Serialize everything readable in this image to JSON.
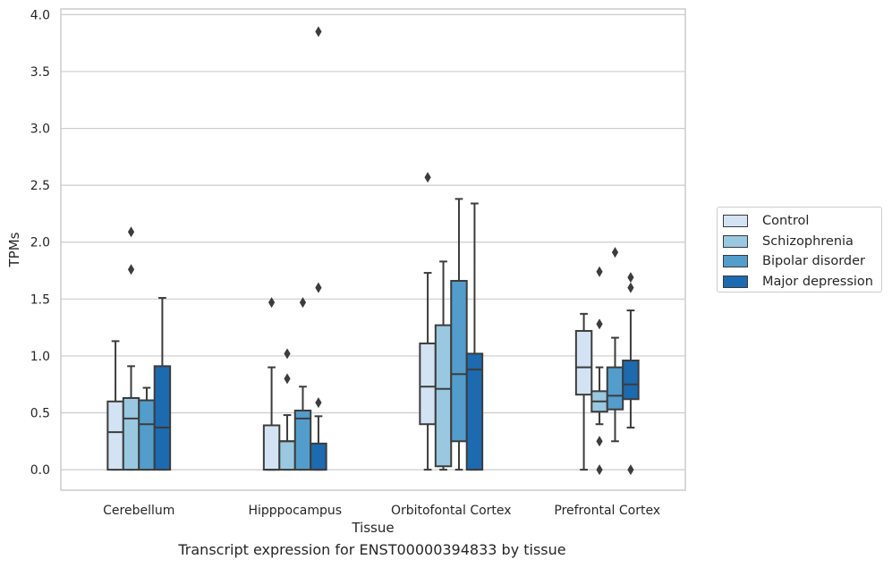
{
  "chart_data": {
    "type": "box",
    "xlabel": "Tissue",
    "ylabel": "TPMs",
    "caption": "Transcript expression for ENST00000394833 by tissue",
    "ylim": [
      -0.18,
      4.05
    ],
    "yticks": [
      "0.0",
      "0.5",
      "1.0",
      "1.5",
      "2.0",
      "2.5",
      "3.0",
      "3.5",
      "4.0"
    ],
    "grid": "horizontal",
    "legend_position": "right",
    "categories": [
      "Cerebellum",
      "Hipppocampus",
      "Orbitofontal Cortex",
      "Prefrontal Cortex"
    ],
    "series": [
      {
        "name": "Control",
        "color": "#d3e3f3",
        "boxes": [
          {
            "whislo": 0.0,
            "q1": 0.0,
            "med": 0.33,
            "q3": 0.6,
            "whishi": 1.13,
            "fliers": []
          },
          {
            "whislo": 0.0,
            "q1": 0.0,
            "med": 0.0,
            "q3": 0.39,
            "whishi": 0.9,
            "fliers": [
              1.47
            ]
          },
          {
            "whislo": 0.0,
            "q1": 0.4,
            "med": 0.73,
            "q3": 1.11,
            "whishi": 1.73,
            "fliers": [
              2.57
            ]
          },
          {
            "whislo": 0.0,
            "q1": 0.66,
            "med": 0.9,
            "q3": 1.22,
            "whishi": 1.37,
            "fliers": []
          }
        ]
      },
      {
        "name": "Schizophrenia",
        "color": "#9ac8e0",
        "boxes": [
          {
            "whislo": 0.0,
            "q1": 0.0,
            "med": 0.45,
            "q3": 0.63,
            "whishi": 0.91,
            "fliers": [
              1.76,
              2.09
            ]
          },
          {
            "whislo": 0.0,
            "q1": 0.0,
            "med": 0.25,
            "q3": 0.25,
            "whishi": 0.48,
            "fliers": [
              0.8,
              1.02
            ]
          },
          {
            "whislo": 0.0,
            "q1": 0.03,
            "med": 0.71,
            "q3": 1.27,
            "whishi": 1.83,
            "fliers": []
          },
          {
            "whislo": 0.4,
            "q1": 0.51,
            "med": 0.6,
            "q3": 0.69,
            "whishi": 0.9,
            "fliers": [
              0.0,
              0.25,
              1.28,
              1.74
            ]
          }
        ]
      },
      {
        "name": "Bipolar disorder",
        "color": "#529dcc",
        "boxes": [
          {
            "whislo": 0.0,
            "q1": 0.0,
            "med": 0.4,
            "q3": 0.61,
            "whishi": 0.72,
            "fliers": []
          },
          {
            "whislo": 0.0,
            "q1": 0.0,
            "med": 0.45,
            "q3": 0.52,
            "whishi": 0.73,
            "fliers": [
              1.47
            ]
          },
          {
            "whislo": 0.0,
            "q1": 0.25,
            "med": 0.84,
            "q3": 1.66,
            "whishi": 2.38,
            "fliers": []
          },
          {
            "whislo": 0.25,
            "q1": 0.53,
            "med": 0.65,
            "q3": 0.9,
            "whishi": 1.16,
            "fliers": [
              1.91
            ]
          }
        ]
      },
      {
        "name": "Major depression",
        "color": "#1c6aaf",
        "boxes": [
          {
            "whislo": 0.0,
            "q1": 0.0,
            "med": 0.37,
            "q3": 0.91,
            "whishi": 1.51,
            "fliers": []
          },
          {
            "whislo": 0.0,
            "q1": 0.0,
            "med": 0.0,
            "q3": 0.23,
            "whishi": 0.47,
            "fliers": [
              0.59,
              1.6,
              3.85
            ]
          },
          {
            "whislo": 0.0,
            "q1": 0.0,
            "med": 0.88,
            "q3": 1.02,
            "whishi": 2.34,
            "fliers": []
          },
          {
            "whislo": 0.37,
            "q1": 0.62,
            "med": 0.75,
            "q3": 0.96,
            "whishi": 1.4,
            "fliers": [
              0.0,
              1.6,
              1.69
            ]
          }
        ]
      }
    ]
  }
}
